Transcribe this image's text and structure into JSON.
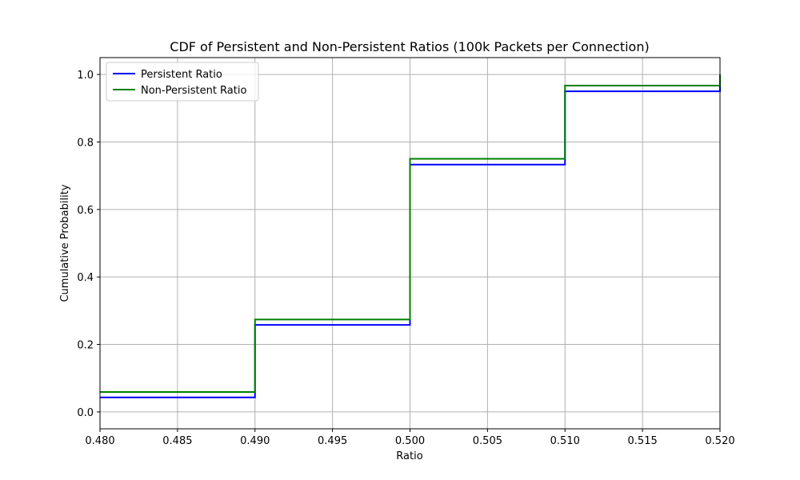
{
  "chart_data": {
    "type": "line",
    "step": "post",
    "title": "CDF of Persistent and Non-Persistent Ratios (100k Packets per Connection)",
    "xlabel": "Ratio",
    "ylabel": "Cumulative Probability",
    "xlim": [
      0.48,
      0.52
    ],
    "ylim": [
      -0.05,
      1.05
    ],
    "xticks": [
      "0.480",
      "0.485",
      "0.490",
      "0.495",
      "0.500",
      "0.505",
      "0.510",
      "0.515",
      "0.520"
    ],
    "yticks": [
      "0.0",
      "0.2",
      "0.4",
      "0.6",
      "0.8",
      "1.0"
    ],
    "grid": true,
    "legend_position": "upper-left",
    "series": [
      {
        "name": "Persistent Ratio",
        "color": "#0000ff",
        "x": [
          0.48,
          0.49,
          0.5,
          0.51,
          0.52
        ],
        "y": [
          0.043,
          0.258,
          0.733,
          0.95,
          1.0
        ]
      },
      {
        "name": "Non-Persistent Ratio",
        "color": "#008000",
        "x": [
          0.48,
          0.49,
          0.5,
          0.51,
          0.52
        ],
        "y": [
          0.059,
          0.274,
          0.75,
          0.967,
          1.0
        ]
      }
    ]
  }
}
